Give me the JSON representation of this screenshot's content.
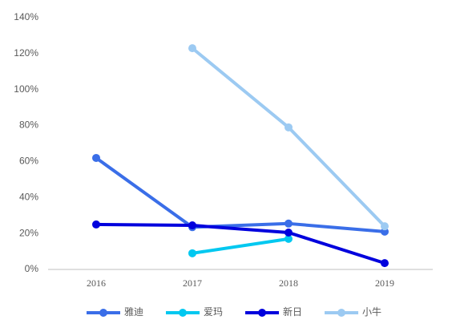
{
  "chart_data": {
    "type": "line",
    "categories": [
      "2016",
      "2017",
      "2018",
      "2019"
    ],
    "series": [
      {
        "name": "雅迪",
        "color": "#3a6ee8",
        "values": [
          62,
          23.5,
          25.5,
          21
        ]
      },
      {
        "name": "爱玛",
        "color": "#00c8f0",
        "values": [
          null,
          9,
          17,
          null
        ]
      },
      {
        "name": "新日",
        "color": "#0000dd",
        "values": [
          25,
          24.5,
          20.5,
          3.5
        ]
      },
      {
        "name": "小牛",
        "color": "#9ccaf2",
        "values": [
          null,
          123,
          79,
          24
        ]
      }
    ],
    "ylim": [
      0,
      140
    ],
    "yticks": [
      {
        "value": 0,
        "label": "0%"
      },
      {
        "value": 20,
        "label": "20%"
      },
      {
        "value": 40,
        "label": "40%"
      },
      {
        "value": 60,
        "label": "60%"
      },
      {
        "value": 80,
        "label": "80%"
      },
      {
        "value": 100,
        "label": "100%"
      },
      {
        "value": 120,
        "label": "120%"
      },
      {
        "value": 140,
        "label": "140%"
      }
    ],
    "grid": false,
    "legend": "bottom"
  }
}
